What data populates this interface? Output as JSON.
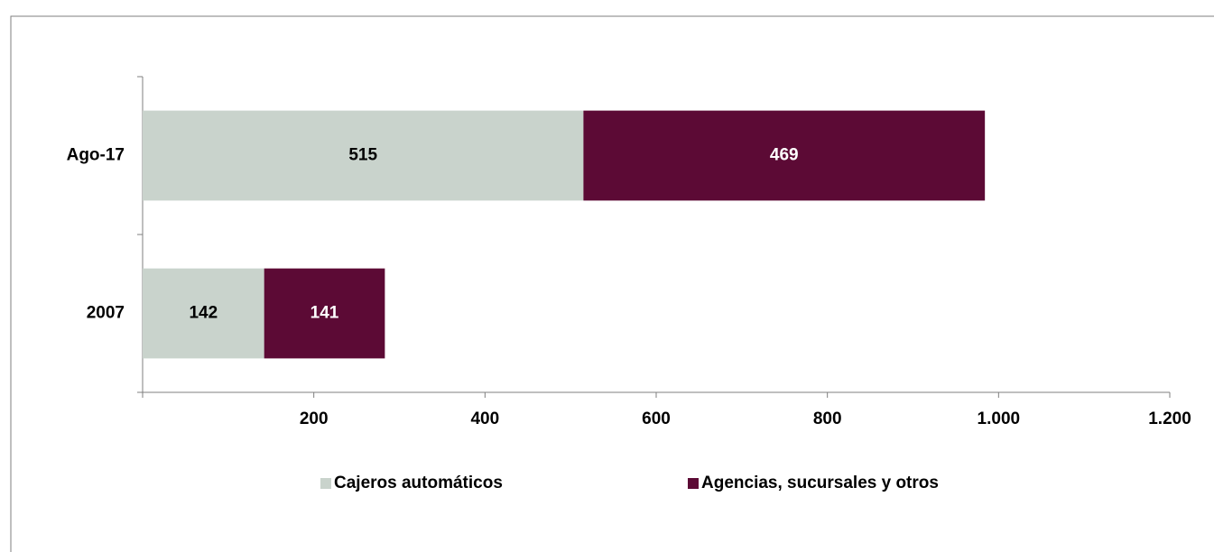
{
  "chart_data": {
    "type": "stacked-barh",
    "categories": [
      "Ago-17",
      "2007"
    ],
    "series": [
      {
        "name": "Cajeros automáticos",
        "color": "#c9d3cc",
        "label_color": "#000000",
        "values": [
          515,
          142
        ]
      },
      {
        "name": "Agencias, sucursales y otros",
        "color": "#5c0a35",
        "label_color": "#ffffff",
        "values": [
          469,
          141
        ]
      }
    ],
    "xlim": [
      0,
      1200
    ],
    "xticks": [
      200,
      400,
      600,
      800,
      {
        "value": 1000,
        "label": "1.000"
      },
      {
        "value": 1200,
        "label": "1.200"
      }
    ],
    "legend": "bottom"
  }
}
